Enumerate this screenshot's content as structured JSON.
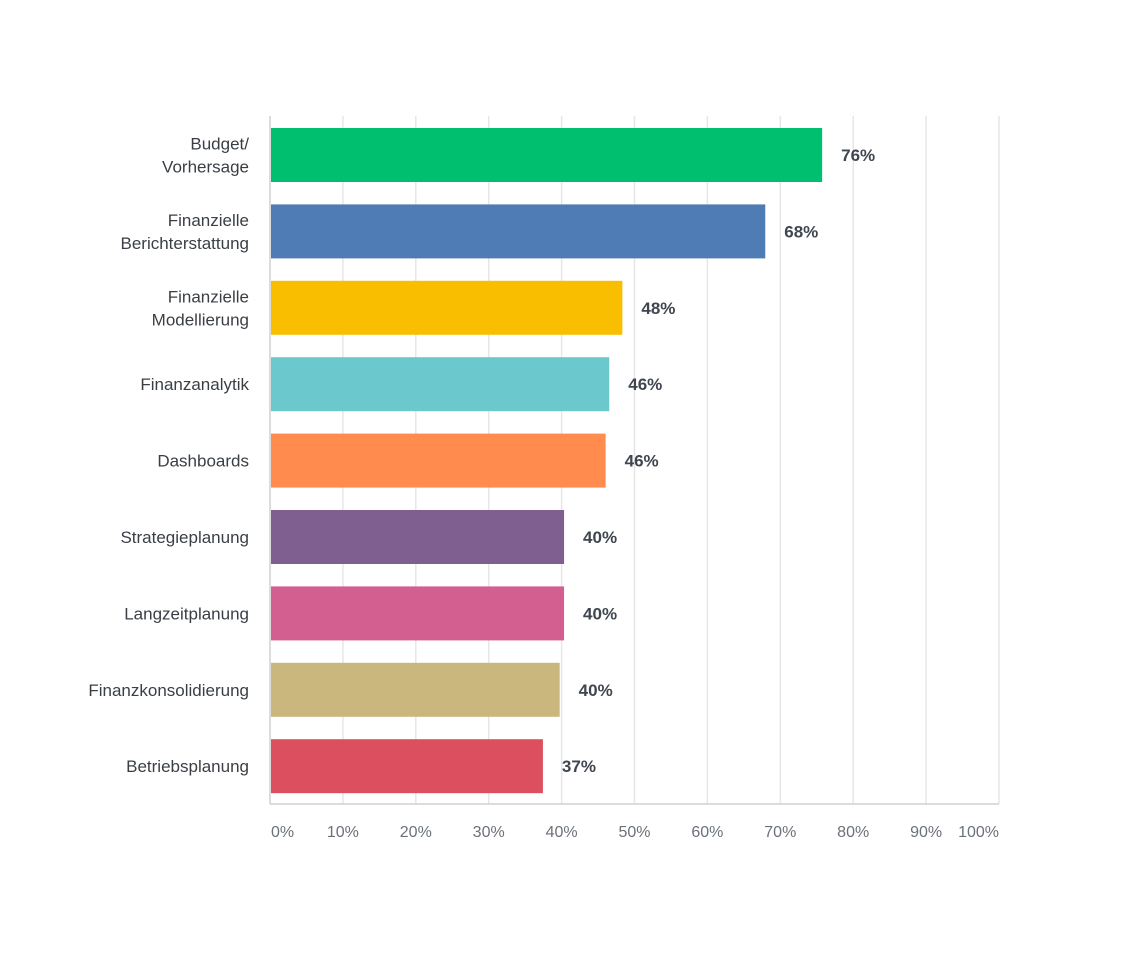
{
  "chart_data": {
    "type": "bar",
    "orientation": "horizontal",
    "categories": [
      [
        "Budget/",
        "Vorhersage"
      ],
      [
        "Finanzielle",
        "Berichterstattung"
      ],
      [
        "Finanzielle",
        "Modellierung"
      ],
      [
        "Finanzanalytik"
      ],
      [
        "Dashboards"
      ],
      [
        "Strategieplanung"
      ],
      [
        "Langzeitplanung"
      ],
      [
        "Finanzkonsolidierung"
      ],
      [
        "Betriebsplanung"
      ]
    ],
    "values": [
      75.6,
      67.8,
      48.2,
      46.4,
      45.9,
      40.2,
      40.2,
      39.6,
      37.3
    ],
    "value_labels": [
      "76%",
      "68%",
      "48%",
      "46%",
      "46%",
      "40%",
      "40%",
      "40%",
      "37%"
    ],
    "colors": [
      "#00bf6f",
      "#507cb6",
      "#f9be00",
      "#6bc8cd",
      "#ff8b4f",
      "#7f5f8f",
      "#d25f90",
      "#c9b77d",
      "#dc4f5f"
    ],
    "xlim": [
      0,
      100
    ],
    "ticks": [
      0,
      10,
      20,
      30,
      40,
      50,
      60,
      70,
      80,
      90,
      100
    ],
    "tick_labels": [
      "0%",
      "10%",
      "20%",
      "30%",
      "40%",
      "50%",
      "60%",
      "70%",
      "80%",
      "90%",
      "100%"
    ],
    "grid": true,
    "title": "",
    "xlabel": "",
    "ylabel": ""
  }
}
